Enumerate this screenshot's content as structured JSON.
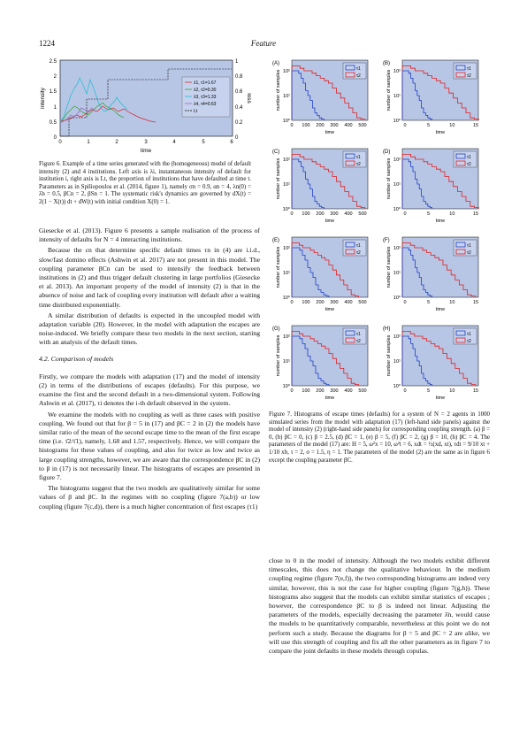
{
  "header": {
    "page_number": "1224",
    "running_head": "Feature"
  },
  "fig6": {
    "caption": "Figure 6. Example of a time series generated with the (homogeneous) model of default intensity (2) and 4 institutions. Left axis is λi, instantaneous intensity of default for institution i, right axis is Lt, the proportion of institutions that have defaulted at time t. Parameters as in Spiliopoulos et al. (2014, figure 1), namely σn = 0.9, αn = 4, λn(0) = λ̄n = 0.5, βCn = 2, βSn = 1. The systematic risk's dynamics are governed by dX(t) = 2(1 − X(t)) dt + dW(t) with initial condition X(0) = 1.",
    "ylabel": "intensity",
    "y2label": "loss",
    "xlabel": "time",
    "xticks": [
      "0",
      "1",
      "2",
      "3",
      "4",
      "5",
      "6"
    ],
    "yticks": [
      "0",
      "0.5",
      "1",
      "1.5",
      "2",
      "2.5"
    ],
    "y2ticks": [
      "0",
      "0.2",
      "0.4",
      "0.6",
      "0.8",
      "1"
    ],
    "legend": [
      "λ1, τ1=1.67",
      "λ2, τ2=0.30",
      "λ3, τ3=1.33",
      "λ4, τ4=0.63",
      "Lt"
    ]
  },
  "fig7": {
    "panels": [
      "(A)",
      "(B)",
      "(C)",
      "(D)",
      "(E)",
      "(F)",
      "(G)",
      "(H)"
    ],
    "ylabel": "number of samples",
    "xlabel": "time",
    "yticks": [
      "10⁰",
      "10¹",
      "10²"
    ],
    "xticks_left": [
      "0",
      "100",
      "200",
      "300",
      "400",
      "500"
    ],
    "xticks_right": [
      "0",
      "5",
      "10",
      "15"
    ],
    "legend": [
      "τ1",
      "τ2"
    ],
    "caption": "Figure 7. Histograms of escape times (defaults) for a system of N = 2 agents in 1000 simulated series from the model with adaptation (17) (left-hand side panels) against the model of intensity (2) (right-hand side panels) for corresponding coupling strength. (a) β = 0, (b) βC = 0, (c) β = 2.5, (d) βC = 1, (e) β = 5, (f) βC = 2, (g) β = 10, (h) βC = 4. The parameters of the model (17) are: H = 5, ω²x = 10, ω²t = 6, xdt = ½(xd, xt), τdt = 9/10 xt + 1/10 xb, τ = 2, σ = 1.5, η = 1. The parameters of the model (2) are the same as in figure 6 except the coupling parameter βC."
  },
  "left_text": {
    "p1": "Giesecke et al. (2013). Figure 6 presents a sample realisation of the process of intensity of defaults for N = 4 interacting institutions.",
    "p2": "Because the εn that determine specific default times τn in (4) are i.i.d., slow/fast domino effects (Ashwin et al. 2017) are not present in this model. The coupling parameter βCn can be used to intensify the feedback between institutions in (2) and thus trigger default clustering in large portfolios (Giesecke et al. 2013). An important property of the model of intensity (2) is that in the absence of noise and lack of coupling every institution will default after a waiting time distributed exponentially.",
    "p3": "A similar distribution of defaults is expected in the uncoupled model with adaptation variable (20). However, in the model with adaptation the escapes are noise-induced. We briefly compare these two models in the next section, starting with an analysis of the default times.",
    "section": "4.2. Comparison of models",
    "p4": "Firstly, we compare the models with adaptation (17) and the model of intensity (2) in terms of the distributions of escapes (defaults). For this purpose, we examine the first and the second default in a two-dimensional system. Following Ashwin et al. (2017), τi denotes the i-th default observed in the system.",
    "p5": "We examine the models with no coupling as well as three cases with positive coupling. We found out that for β = 5 in (17) and βC = 2 in (2) the models have similar ratio of the mean of the second escape time to the mean of the first escape time (i.e. τ̄2/τ̄1), namely, 1.68 and 1.57, respectively. Hence, we will compare the histograms for these values of coupling, and also for twice as low and twice as large coupling strengths, however, we are aware that the correspondence βC in (2) to β in (17) is not necessarily linear. The histograms of escapes are presented in figure 7.",
    "p6": "The histograms suggest that the two models are qualitatively similar for some values of β and βC. In the regimes with no coupling (figure 7(a,b)) or low coupling (figure 7(c,d)), there is a much higher concentration of first escapes (τ1)"
  },
  "right_text": {
    "p1": "close to 0 in the model of intensity. Although the two models exhibit different timescales, this does not change the qualitative behaviour. In the medium coupling regime (figure 7(e,f)), the two corresponding histograms are indeed very similar, however, this is not the case for higher coupling (figure 7(g,h)). These histograms also suggest that the models can exhibit similar statistics of escapes ; however, the correspondence βC to β is indeed not linear. Adjusting the parameters of the models, especially decreasing the parameter λ̄n, would cause the models to be quantitatively comparable, nevertheless at this point we do not perform such a study. Because the diagrams for β = 5 and βC = 2 are alike, we will use this strength of coupling and fix all the other parameters as in figure 7 to compare the joint defaults in these models through copulas."
  }
}
